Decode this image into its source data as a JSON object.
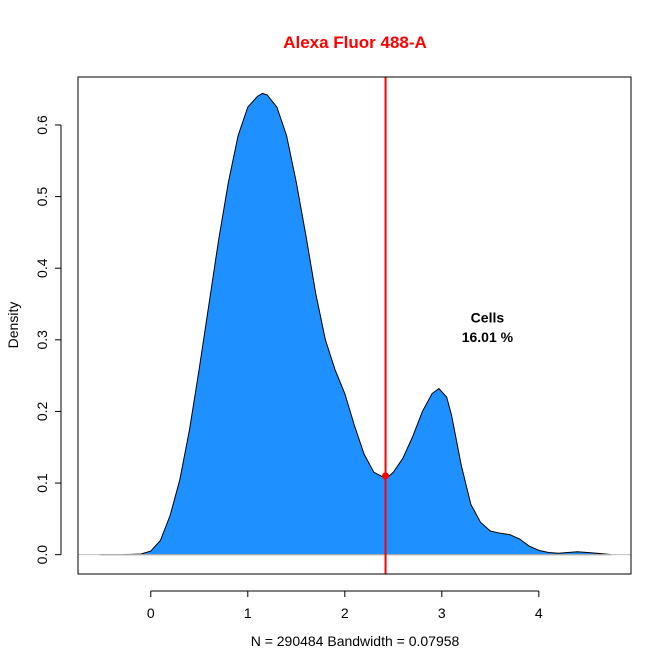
{
  "chart_data": {
    "type": "area",
    "title": "Alexa Fluor 488-A",
    "xlabel": "N = 290484   Bandwidth = 0.07958",
    "ylabel": "Density",
    "xlim": [
      -0.75,
      4.95
    ],
    "ylim": [
      -0.027,
      0.667
    ],
    "x_ticks": [
      0,
      1,
      2,
      3,
      4
    ],
    "y_ticks": [
      0.0,
      0.1,
      0.2,
      0.3,
      0.4,
      0.5,
      0.6
    ],
    "grid": false,
    "colors": {
      "fill": "#1E90FF",
      "outline": "#000000",
      "gate_line": "#FF0000",
      "title": "#FF0000",
      "baseline": "#BEBEBE"
    },
    "series": [
      {
        "x": [
          -0.52,
          -0.3,
          -0.1,
          0.0,
          0.1,
          0.2,
          0.3,
          0.4,
          0.5,
          0.6,
          0.7,
          0.8,
          0.9,
          1.0,
          1.1,
          1.15,
          1.2,
          1.3,
          1.4,
          1.5,
          1.6,
          1.7,
          1.8,
          1.9,
          2.0,
          2.1,
          2.2,
          2.3,
          2.4,
          2.45,
          2.5,
          2.6,
          2.7,
          2.8,
          2.9,
          2.97,
          3.05,
          3.1,
          3.2,
          3.3,
          3.4,
          3.5,
          3.6,
          3.7,
          3.8,
          3.9,
          4.0,
          4.1,
          4.2,
          4.3,
          4.4,
          4.5,
          4.6,
          4.75
        ],
        "y": [
          0.0,
          0.0,
          0.001,
          0.005,
          0.02,
          0.055,
          0.105,
          0.175,
          0.26,
          0.35,
          0.44,
          0.52,
          0.585,
          0.625,
          0.64,
          0.644,
          0.642,
          0.625,
          0.585,
          0.52,
          0.445,
          0.365,
          0.3,
          0.258,
          0.225,
          0.18,
          0.14,
          0.115,
          0.108,
          0.109,
          0.115,
          0.135,
          0.165,
          0.2,
          0.225,
          0.232,
          0.22,
          0.195,
          0.125,
          0.07,
          0.045,
          0.033,
          0.03,
          0.028,
          0.022,
          0.012,
          0.006,
          0.003,
          0.002,
          0.003,
          0.004,
          0.003,
          0.002,
          0.0
        ]
      }
    ],
    "gate": {
      "x": 2.42,
      "y": 0.11
    },
    "annotation": {
      "line1": "Cells",
      "line2": "16.01 %",
      "x": 3.47,
      "y1": 0.331,
      "y2": 0.304
    }
  }
}
